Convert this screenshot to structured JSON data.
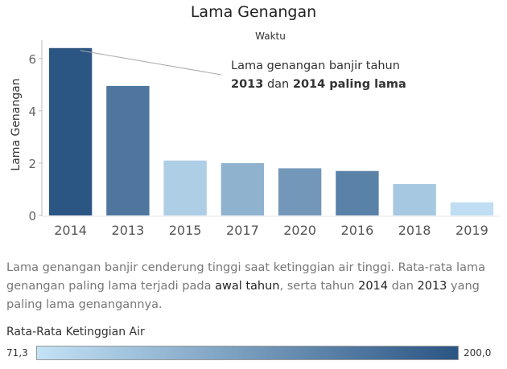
{
  "chart_data": {
    "type": "bar",
    "title": "Lama Genangan",
    "subtitle": "Waktu",
    "ylabel": "Lama Genangan",
    "xlabel": "",
    "categories": [
      "2014",
      "2013",
      "2015",
      "2017",
      "2020",
      "2016",
      "2018",
      "2019"
    ],
    "values": [
      6.4,
      4.95,
      2.1,
      2.0,
      1.8,
      1.7,
      1.2,
      0.5
    ],
    "color_values": [
      200,
      170,
      90,
      115,
      140,
      160,
      95,
      75
    ],
    "yticks": [
      "0",
      "2",
      "4",
      "6"
    ],
    "ylim": [
      0,
      6.7
    ],
    "grid": false,
    "annotation": {
      "line1": "Lama genangan banjir tahun",
      "line2_a": "2013",
      "line2_b": " dan ",
      "line2_c": "2014",
      "line2_d": " paling lama",
      "target": "2014"
    },
    "color_scale": {
      "title": "Rata-Rata Ketinggian Air",
      "min": 71.3,
      "max": 200.0,
      "min_label": "71,3",
      "max_label": "200,0",
      "low_color": "#c3e2f6",
      "high_color": "#2b5583"
    }
  },
  "description": {
    "part1": "Lama genangan banjir cenderung tinggi saat ketinggian air tinggi. Rata-rata lama genangan paling lama terjadi pada ",
    "highlight1": "awal tahun",
    "part2": ", serta tahun ",
    "highlight2": "2014",
    "part3": " dan ",
    "highlight3": "2013",
    "part4": " yang paling lama genangannya."
  }
}
